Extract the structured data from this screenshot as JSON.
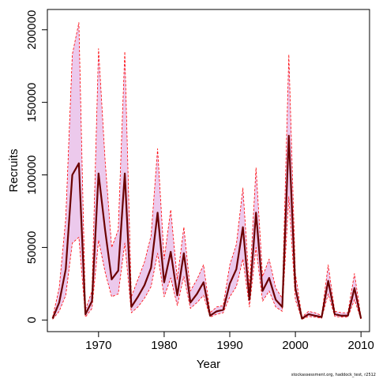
{
  "chart_data": {
    "type": "line",
    "title": "",
    "xlabel": "Year",
    "ylabel": "Recruits",
    "xlim": [
      1962.2,
      2011.3
    ],
    "ylim": [
      -8000,
      214000
    ],
    "x_ticks": [
      1970,
      1980,
      1990,
      2000,
      2010
    ],
    "y_ticks": [
      0,
      50000,
      100000,
      150000,
      200000
    ],
    "x_tick_labels": [
      "1970",
      "1980",
      "1990",
      "2000",
      "2010"
    ],
    "y_tick_labels": [
      "0",
      "50000",
      "100000",
      "150000",
      "200000"
    ],
    "grid": false,
    "legend": "none",
    "footnote": "stockassessment.org, haddock_test, r2512",
    "colors": {
      "band_fill": "#ecc9ec",
      "band_edge": "#ff0000",
      "estimate": "#6b0000"
    },
    "x": [
      1963,
      1964,
      1965,
      1966,
      1967,
      1968,
      1969,
      1970,
      1971,
      1972,
      1973,
      1974,
      1975,
      1976,
      1977,
      1978,
      1979,
      1980,
      1981,
      1982,
      1983,
      1984,
      1985,
      1986,
      1987,
      1988,
      1989,
      1990,
      1991,
      1992,
      1993,
      1994,
      1995,
      1996,
      1997,
      1998,
      1999,
      2000,
      2001,
      2002,
      2003,
      2004,
      2005,
      2006,
      2007,
      2008,
      2009,
      2010
    ],
    "series": [
      {
        "role": "estimate",
        "values": [
          1000,
          12000,
          35000,
          100000,
          108000,
          4000,
          13000,
          101000,
          62000,
          28000,
          34000,
          101000,
          9000,
          16000,
          24000,
          36000,
          74000,
          26000,
          47000,
          17000,
          46000,
          12000,
          18000,
          26000,
          3000,
          6000,
          7000,
          25000,
          35000,
          64000,
          14000,
          74000,
          20000,
          29000,
          14000,
          9000,
          127000,
          22000,
          1000,
          4000,
          3000,
          2000,
          27000,
          4000,
          3000,
          3000,
          22000,
          1000
        ]
      },
      {
        "role": "upper",
        "values": [
          2000,
          22000,
          70000,
          183000,
          205000,
          7000,
          20000,
          187000,
          110000,
          50000,
          62000,
          185000,
          16000,
          28000,
          40000,
          58000,
          118000,
          42000,
          76000,
          28000,
          64000,
          20000,
          28000,
          38000,
          5000,
          9000,
          10000,
          38000,
          52000,
          91000,
          22000,
          105000,
          30000,
          42000,
          22000,
          15000,
          183000,
          32000,
          2000,
          6000,
          5000,
          3000,
          38000,
          6000,
          5000,
          5000,
          32000,
          2000
        ]
      },
      {
        "role": "lower",
        "values": [
          500,
          6000,
          17000,
          53000,
          57000,
          2000,
          8000,
          55000,
          33000,
          16000,
          18000,
          53000,
          5000,
          9000,
          15000,
          23000,
          46000,
          16000,
          29000,
          10000,
          30000,
          8000,
          12000,
          17000,
          2000,
          4000,
          5000,
          16000,
          23000,
          42000,
          9000,
          50000,
          13000,
          20000,
          9000,
          6000,
          85000,
          14000,
          500,
          2500,
          2000,
          1200,
          18000,
          2500,
          2000,
          2000,
          14000,
          600
        ]
      }
    ]
  }
}
